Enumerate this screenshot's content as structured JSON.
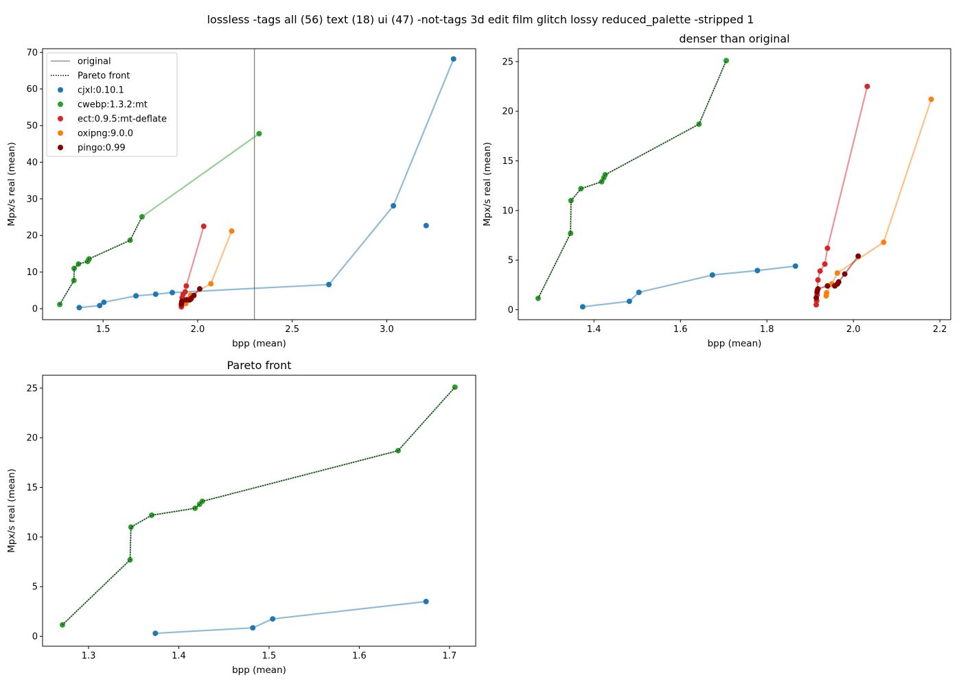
{
  "suptitle": "lossless -tags all (56) text (18) ui (47) -not-tags 3d edit film glitch lossy reduced_palette -stripped 1",
  "colors": {
    "cjxl": "#1f77b4",
    "cwebp": "#2ca02c",
    "ect": "#d62728",
    "oxipng": "#ff7f0e",
    "pingo": "#800000",
    "original": "#808080",
    "pareto": "#000000"
  },
  "legend": {
    "original": "original",
    "pareto": "Pareto front",
    "series": [
      "cjxl:0.10.1",
      "cwebp:1.3.2:mt",
      "ect:0.9.5:mt-deflate",
      "oxipng:9.0.0",
      "pingo:0.99"
    ]
  },
  "chart_data": [
    {
      "type": "scatter",
      "title": "",
      "xlabel": "bpp (mean)",
      "ylabel": "Mpx/s real (mean)",
      "xlim": [
        1.18,
        3.47
      ],
      "ylim": [
        -3,
        71
      ],
      "xticks": [
        1.5,
        2.0,
        2.5,
        3.0
      ],
      "xtick_labels": [
        "1.5",
        "2.0",
        "2.5",
        "3.0"
      ],
      "yticks": [
        0,
        10,
        20,
        30,
        40,
        50,
        60,
        70
      ],
      "ytick_labels": [
        "0",
        "10",
        "20",
        "30",
        "40",
        "50",
        "60",
        "70"
      ],
      "legend_position": "upper-left",
      "original_bpp": 2.3,
      "series": [
        {
          "name": "cjxl:0.10.1",
          "key": "cjxl",
          "points": [
            [
              1.374,
              0.3
            ],
            [
              1.482,
              0.85
            ],
            [
              1.504,
              1.75
            ],
            [
              1.674,
              3.5
            ],
            [
              1.778,
              3.95
            ],
            [
              1.866,
              4.4
            ],
            [
              2.694,
              6.6
            ],
            [
              3.035,
              28.1
            ],
            [
              3.353,
              68.2
            ]
          ],
          "extra_points": [
            [
              3.208,
              22.7
            ]
          ]
        },
        {
          "name": "cwebp:1.3.2:mt",
          "key": "cwebp",
          "points": [
            [
              1.271,
              1.15
            ],
            [
              1.346,
              7.7
            ],
            [
              1.347,
              11.0
            ],
            [
              1.37,
              12.2
            ],
            [
              1.418,
              12.9
            ],
            [
              1.423,
              13.3
            ],
            [
              1.426,
              13.6
            ],
            [
              1.643,
              18.7
            ],
            [
              1.706,
              25.1
            ],
            [
              2.325,
              47.8
            ]
          ]
        },
        {
          "name": "ect:0.9.5:mt-deflate",
          "key": "ect",
          "points": [
            [
              1.914,
              0.5
            ],
            [
              1.915,
              0.9
            ],
            [
              1.916,
              1.5
            ],
            [
              1.917,
              2.0
            ],
            [
              1.918,
              3.0
            ],
            [
              1.923,
              3.9
            ],
            [
              1.934,
              4.6
            ],
            [
              1.94,
              6.2
            ],
            [
              2.032,
              22.5
            ]
          ]
        },
        {
          "name": "oxipng:9.0.0",
          "key": "oxipng",
          "points": [
            [
              1.937,
              1.4
            ],
            [
              1.938,
              1.7
            ],
            [
              1.95,
              2.6
            ],
            [
              1.963,
              3.7
            ],
            [
              2.07,
              6.8
            ],
            [
              2.18,
              21.2
            ]
          ]
        },
        {
          "name": "pingo:0.99",
          "key": "pingo",
          "points": [
            [
              1.914,
              1.2
            ],
            [
              1.916,
              1.8
            ],
            [
              1.918,
              2.1
            ],
            [
              1.94,
              2.4
            ],
            [
              1.957,
              2.4
            ],
            [
              1.963,
              2.6
            ],
            [
              1.966,
              2.8
            ],
            [
              1.98,
              3.6
            ],
            [
              2.011,
              5.4
            ]
          ]
        }
      ],
      "pareto": [
        [
          1.271,
          1.15
        ],
        [
          1.346,
          7.7
        ],
        [
          1.347,
          11.0
        ],
        [
          1.37,
          12.2
        ],
        [
          1.418,
          12.9
        ],
        [
          1.423,
          13.3
        ],
        [
          1.426,
          13.6
        ],
        [
          1.643,
          18.7
        ],
        [
          1.706,
          25.1
        ]
      ]
    },
    {
      "type": "scatter",
      "title": "denser than original",
      "xlabel": "bpp (mean)",
      "ylabel": "Mpx/s real (mean)",
      "xlim": [
        1.225,
        2.225
      ],
      "ylim": [
        -1.0,
        26.3
      ],
      "xticks": [
        1.4,
        1.6,
        1.8,
        2.0,
        2.2
      ],
      "xtick_labels": [
        "1.4",
        "1.6",
        "1.8",
        "2.0",
        "2.2"
      ],
      "yticks": [
        0,
        5,
        10,
        15,
        20,
        25
      ],
      "ytick_labels": [
        "0",
        "5",
        "10",
        "15",
        "20",
        "25"
      ],
      "series": [
        {
          "name": "cjxl:0.10.1",
          "key": "cjxl",
          "points": [
            [
              1.374,
              0.3
            ],
            [
              1.482,
              0.85
            ],
            [
              1.504,
              1.75
            ],
            [
              1.674,
              3.5
            ],
            [
              1.778,
              3.95
            ],
            [
              1.866,
              4.4
            ]
          ]
        },
        {
          "name": "cwebp:1.3.2:mt",
          "key": "cwebp",
          "points": [
            [
              1.271,
              1.15
            ],
            [
              1.346,
              7.7
            ],
            [
              1.347,
              11.0
            ],
            [
              1.37,
              12.2
            ],
            [
              1.418,
              12.9
            ],
            [
              1.423,
              13.3
            ],
            [
              1.426,
              13.6
            ],
            [
              1.643,
              18.7
            ],
            [
              1.706,
              25.1
            ]
          ]
        },
        {
          "name": "ect:0.9.5:mt-deflate",
          "key": "ect",
          "points": [
            [
              1.914,
              0.5
            ],
            [
              1.915,
              0.9
            ],
            [
              1.916,
              1.5
            ],
            [
              1.917,
              2.0
            ],
            [
              1.918,
              3.0
            ],
            [
              1.923,
              3.9
            ],
            [
              1.934,
              4.6
            ],
            [
              1.94,
              6.2
            ],
            [
              2.032,
              22.5
            ]
          ]
        },
        {
          "name": "oxipng:9.0.0",
          "key": "oxipng",
          "points": [
            [
              1.937,
              1.4
            ],
            [
              1.938,
              1.7
            ],
            [
              1.95,
              2.6
            ],
            [
              1.963,
              3.7
            ],
            [
              2.07,
              6.8
            ],
            [
              2.18,
              21.2
            ]
          ]
        },
        {
          "name": "pingo:0.99",
          "key": "pingo",
          "points": [
            [
              1.914,
              1.2
            ],
            [
              1.916,
              1.8
            ],
            [
              1.918,
              2.1
            ],
            [
              1.94,
              2.4
            ],
            [
              1.957,
              2.4
            ],
            [
              1.963,
              2.6
            ],
            [
              1.966,
              2.8
            ],
            [
              1.98,
              3.6
            ],
            [
              2.011,
              5.4
            ]
          ]
        }
      ],
      "pareto": [
        [
          1.271,
          1.15
        ],
        [
          1.346,
          7.7
        ],
        [
          1.347,
          11.0
        ],
        [
          1.37,
          12.2
        ],
        [
          1.418,
          12.9
        ],
        [
          1.423,
          13.3
        ],
        [
          1.426,
          13.6
        ],
        [
          1.643,
          18.7
        ],
        [
          1.706,
          25.1
        ]
      ]
    },
    {
      "type": "scatter",
      "title": "Pareto front",
      "xlabel": "bpp (mean)",
      "ylabel": "Mpx/s real (mean)",
      "xlim": [
        1.249,
        1.729
      ],
      "ylim": [
        -1.0,
        26.3
      ],
      "xticks": [
        1.3,
        1.4,
        1.5,
        1.6,
        1.7
      ],
      "xtick_labels": [
        "1.3",
        "1.4",
        "1.5",
        "1.6",
        "1.7"
      ],
      "yticks": [
        0,
        5,
        10,
        15,
        20,
        25
      ],
      "ytick_labels": [
        "0",
        "5",
        "10",
        "15",
        "20",
        "25"
      ],
      "series": [
        {
          "name": "cjxl:0.10.1",
          "key": "cjxl",
          "points": [
            [
              1.374,
              0.3
            ],
            [
              1.482,
              0.85
            ],
            [
              1.504,
              1.75
            ],
            [
              1.674,
              3.5
            ]
          ]
        },
        {
          "name": "cwebp:1.3.2:mt",
          "key": "cwebp",
          "points": [
            [
              1.271,
              1.15
            ],
            [
              1.346,
              7.7
            ],
            [
              1.347,
              11.0
            ],
            [
              1.37,
              12.2
            ],
            [
              1.418,
              12.9
            ],
            [
              1.423,
              13.3
            ],
            [
              1.426,
              13.6
            ],
            [
              1.643,
              18.7
            ],
            [
              1.706,
              25.1
            ]
          ]
        }
      ],
      "pareto": [
        [
          1.271,
          1.15
        ],
        [
          1.346,
          7.7
        ],
        [
          1.347,
          11.0
        ],
        [
          1.37,
          12.2
        ],
        [
          1.418,
          12.9
        ],
        [
          1.423,
          13.3
        ],
        [
          1.426,
          13.6
        ],
        [
          1.643,
          18.7
        ],
        [
          1.706,
          25.1
        ]
      ]
    }
  ]
}
